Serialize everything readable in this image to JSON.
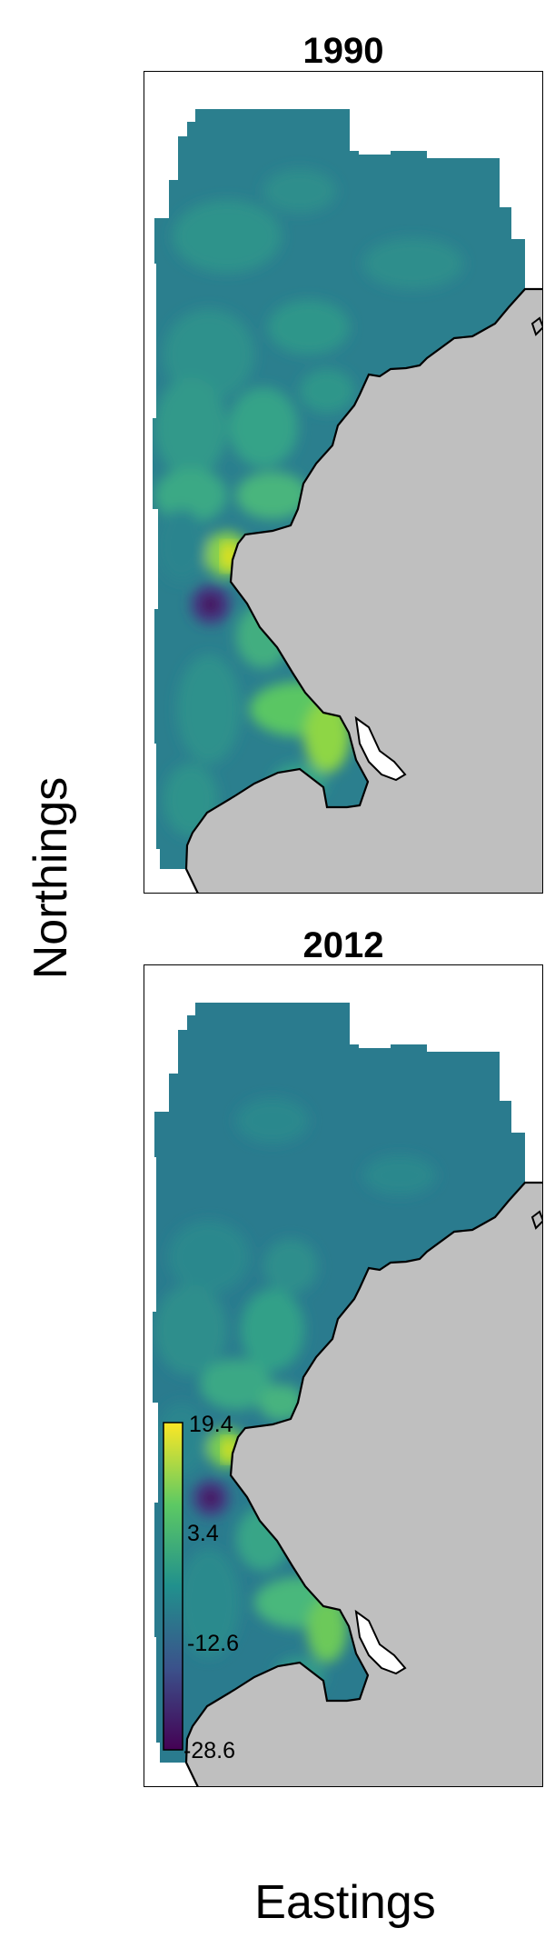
{
  "panels": [
    {
      "title": "1990"
    },
    {
      "title": "2012"
    }
  ],
  "axes": {
    "xlabel": "Eastings",
    "ylabel": "Northings"
  },
  "legend": {
    "labels": [
      "19.4",
      "3.4",
      "-12.6",
      "-28.6"
    ],
    "min": -28.6,
    "max": 19.4,
    "colormap": "viridis"
  },
  "colors": {
    "land": "#bfbfbf",
    "sea_base": "#2b7f8e",
    "frame": "#000000"
  }
}
